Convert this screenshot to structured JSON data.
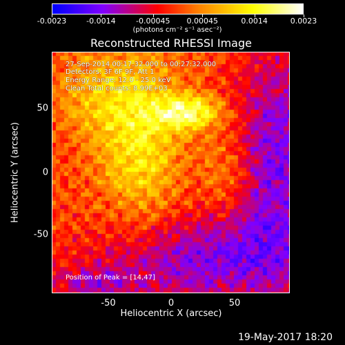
{
  "chart_data": {
    "type": "heatmap",
    "title": "Reconstructed RHESSI Image",
    "xlabel": "Heliocentric X (arcsec)",
    "ylabel": "Heliocentric Y (arcsec)",
    "xlim": [
      -95,
      95
    ],
    "ylim": [
      -97,
      95
    ],
    "x_ticks": [
      "-50",
      "0",
      "50"
    ],
    "y_ticks": [
      "-50",
      "0",
      "50"
    ],
    "colorbar": {
      "range": [
        -0.0023,
        0.0023
      ],
      "tick_labels": [
        "-0.0023",
        "-0.0014",
        "-0.00045",
        "0.00045",
        "0.0014",
        "0.0023"
      ],
      "units": "(photons cm⁻² s⁻¹ asec⁻²)",
      "colors": [
        "#0000ff",
        "#8000ff",
        "#ff0000",
        "#ff8000",
        "#ffff00",
        "#ffffff"
      ]
    },
    "annotations": [
      "27-Sep-2014 00:17:32.000 to 00:27:32.000",
      "Detectors: 3F 6F 9F, Att 1",
      "Energy Range: 12.0 - 25.0 keV",
      "Clean     Total counts: 8.99E+03"
    ],
    "peak_label": "Position of Peak = [14,47]",
    "peak_position": [
      14,
      47
    ],
    "grid": false
  },
  "footer": {
    "date": "19-May-2017 18:20"
  }
}
